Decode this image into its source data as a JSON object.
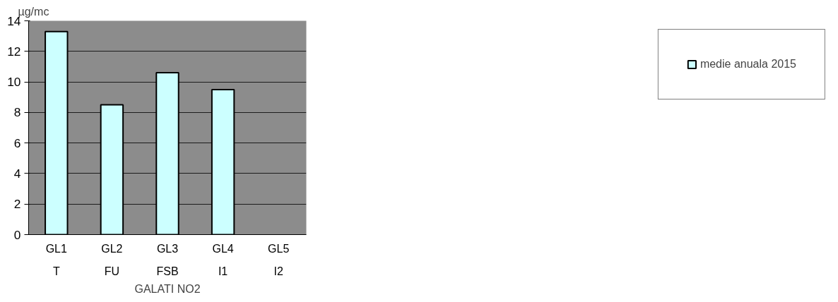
{
  "chart_data": {
    "type": "bar",
    "ylabel": "µg/mc",
    "xlabel": "GALATI NO2",
    "categories": [
      "GL1",
      "GL2",
      "GL3",
      "GL4",
      "GL5"
    ],
    "annotations": [
      "T",
      "FU",
      "FSB",
      "I1",
      "I2"
    ],
    "series": [
      {
        "name": "medie anuala 2015",
        "color": "#ccffff",
        "values": [
          13.3,
          8.5,
          10.6,
          9.5,
          null
        ]
      }
    ],
    "ylim": [
      0,
      14
    ],
    "yticks": [
      0,
      2,
      4,
      6,
      8,
      10,
      12,
      14
    ],
    "grid": "y",
    "legend": "right"
  }
}
